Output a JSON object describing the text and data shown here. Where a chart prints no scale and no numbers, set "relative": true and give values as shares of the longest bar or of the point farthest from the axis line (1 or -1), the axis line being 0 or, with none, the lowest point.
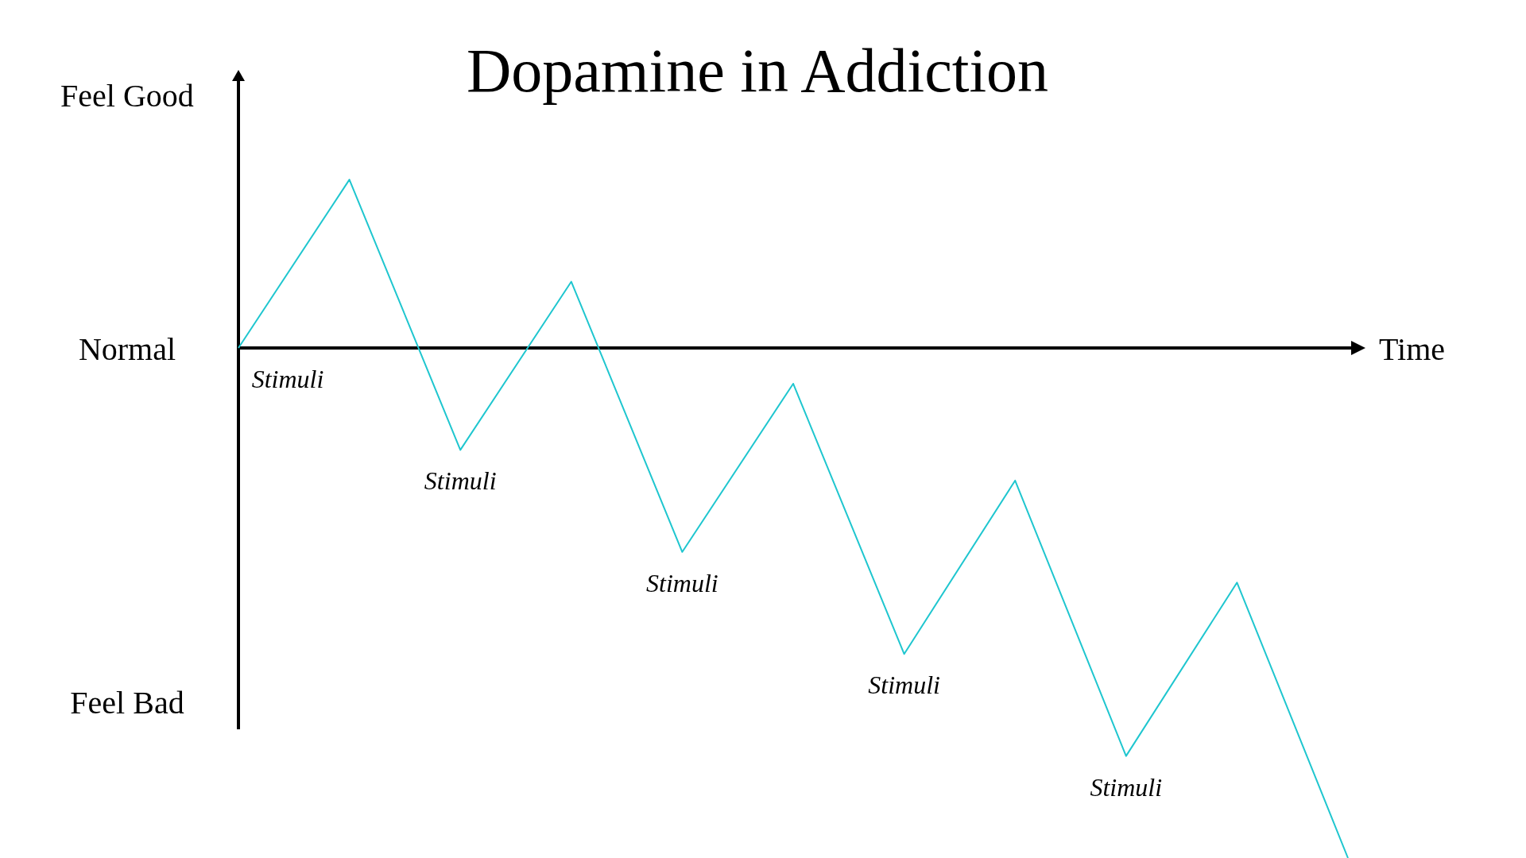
{
  "chart_data": {
    "type": "line",
    "title": "Dopamine in Addiction",
    "xlabel": "Time",
    "relative": true,
    "categories": [
      null,
      null,
      null,
      null,
      null,
      null,
      null,
      null,
      null,
      null,
      null
    ],
    "series": [
      {
        "color": "#1fc6cf",
        "values": [
          0,
          0.33,
          -0.2,
          0.13,
          -0.4,
          -0.07,
          -0.6,
          -0.26,
          -0.8,
          -0.46,
          -1
        ]
      }
    ],
    "annotations": [
      "Feel Good",
      "Normal",
      "Feel Bad",
      "Stimuli",
      "Stimuli",
      "Stimuli",
      "Stimuli",
      "Stimuli"
    ]
  }
}
